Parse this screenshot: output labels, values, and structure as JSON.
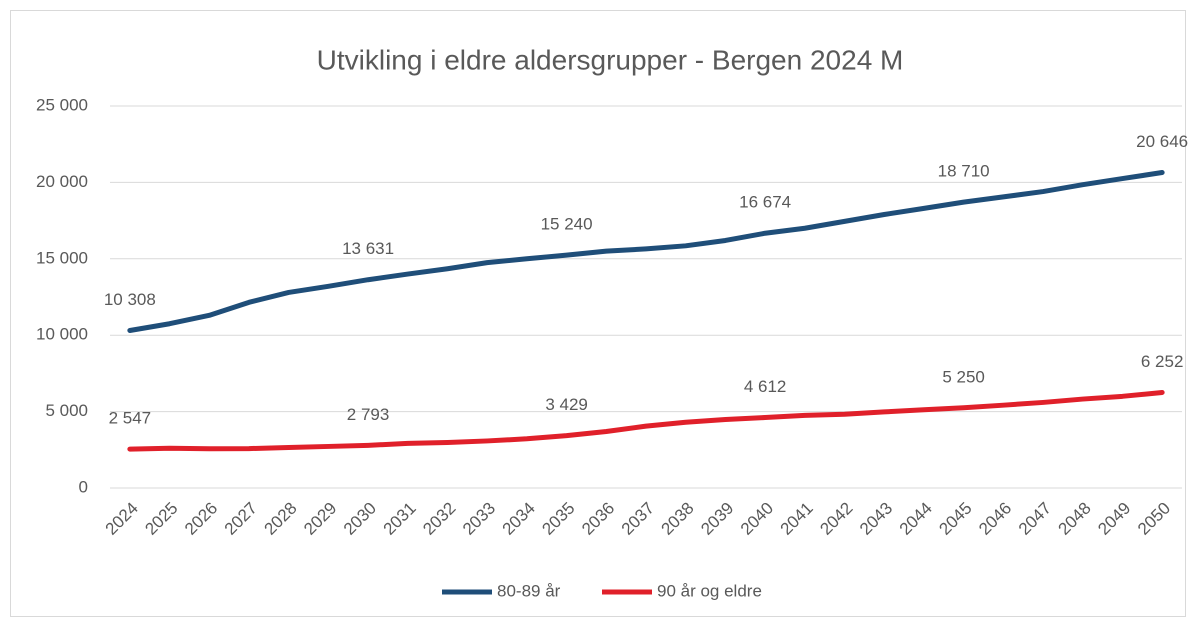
{
  "chart_data": {
    "type": "line",
    "title": "Utvikling i eldre aldersgrupper - Bergen 2024 M",
    "categories": [
      "2024",
      "2025",
      "2026",
      "2027",
      "2028",
      "2029",
      "2030",
      "2031",
      "2032",
      "2033",
      "2034",
      "2035",
      "2036",
      "2037",
      "2038",
      "2039",
      "2040",
      "2041",
      "2042",
      "2043",
      "2044",
      "2045",
      "2046",
      "2047",
      "2048",
      "2049",
      "2050"
    ],
    "series": [
      {
        "name": "80-89 år",
        "color": "#1f4e79",
        "values": [
          10308,
          10750,
          11300,
          12150,
          12800,
          13200,
          13631,
          14000,
          14350,
          14750,
          15000,
          15240,
          15500,
          15650,
          15850,
          16200,
          16674,
          17000,
          17450,
          17900,
          18300,
          18710,
          19050,
          19400,
          19850,
          20250,
          20646
        ],
        "value_labels": [
          "10 308",
          null,
          null,
          null,
          null,
          null,
          "13 631",
          null,
          null,
          null,
          null,
          "15 240",
          null,
          null,
          null,
          null,
          "16 674",
          null,
          null,
          null,
          null,
          "18 710",
          null,
          null,
          null,
          null,
          "20 646"
        ]
      },
      {
        "name": "90 år og eldre",
        "color": "#e0202a",
        "values": [
          2547,
          2600,
          2570,
          2580,
          2650,
          2720,
          2793,
          2920,
          2980,
          3080,
          3220,
          3429,
          3700,
          4050,
          4300,
          4480,
          4612,
          4750,
          4830,
          4980,
          5120,
          5250,
          5420,
          5600,
          5820,
          6000,
          6252
        ],
        "value_labels": [
          "2 547",
          null,
          null,
          null,
          null,
          null,
          "2 793",
          null,
          null,
          null,
          null,
          "3 429",
          null,
          null,
          null,
          null,
          "4 612",
          null,
          null,
          null,
          null,
          "5 250",
          null,
          null,
          null,
          null,
          "6 252"
        ]
      }
    ],
    "ylim": [
      0,
      25000
    ],
    "yticks": [
      0,
      {
        "value": 5000,
        "label": "5 000"
      },
      {
        "value": 10000,
        "label": "10 000"
      },
      {
        "value": 15000,
        "label": "15 000"
      },
      {
        "value": 20000,
        "label": "20 000"
      },
      {
        "value": 25000,
        "label": "25 000"
      }
    ],
    "grid": true,
    "legend": "bottom"
  }
}
